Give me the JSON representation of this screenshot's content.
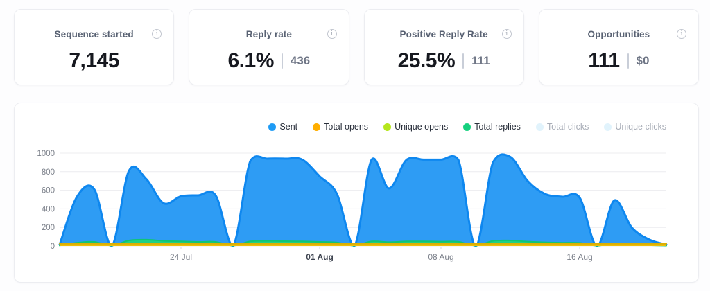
{
  "icons": {
    "info": "i"
  },
  "stats": [
    {
      "label": "Sequence started",
      "value": "7,145",
      "secondary": ""
    },
    {
      "label": "Reply rate",
      "value": "6.1%",
      "secondary": "436"
    },
    {
      "label": "Positive Reply Rate",
      "value": "25.5%",
      "secondary": "111"
    },
    {
      "label": "Opportunities",
      "value": "111",
      "secondary": "$0"
    }
  ],
  "legend": {
    "items": [
      {
        "label": "Sent",
        "color": "#1E9BF5",
        "enabled": true
      },
      {
        "label": "Total opens",
        "color": "#FFAE00",
        "enabled": true
      },
      {
        "label": "Unique opens",
        "color": "#B5E61D",
        "enabled": true
      },
      {
        "label": "Total replies",
        "color": "#15D07E",
        "enabled": true
      },
      {
        "label": "Total clicks",
        "color": "#E1F3FC",
        "enabled": false
      },
      {
        "label": "Unique clicks",
        "color": "#E1F3FC",
        "enabled": false
      }
    ]
  },
  "chart_data": {
    "type": "area",
    "x_unit": "day",
    "n_points": 36,
    "x_ticks": [
      {
        "label": "24 Jul",
        "index": 7,
        "bold": false
      },
      {
        "label": "01 Aug",
        "index": 15,
        "bold": true
      },
      {
        "label": "08 Aug",
        "index": 22,
        "bold": false
      },
      {
        "label": "16 Aug",
        "index": 30,
        "bold": false
      }
    ],
    "ylim": [
      0,
      1000
    ],
    "y_ticks": [
      0,
      200,
      400,
      600,
      800,
      1000
    ],
    "grid": "horizontal",
    "legend_position": "top-right",
    "series": [
      {
        "name": "Sent",
        "fill": "#2E9CF4",
        "stroke": "#0E87EF",
        "stroke_width": 3,
        "values": [
          15,
          530,
          610,
          0,
          810,
          720,
          460,
          535,
          545,
          545,
          0,
          915,
          940,
          940,
          930,
          750,
          560,
          0,
          930,
          620,
          925,
          930,
          930,
          930,
          0,
          900,
          960,
          700,
          560,
          530,
          520,
          0,
          490,
          200,
          70,
          15
        ]
      },
      {
        "name": "Total replies",
        "fill": "#1FD184",
        "stroke": "#0FC475",
        "stroke_width": 2,
        "values": [
          5,
          35,
          45,
          4,
          60,
          68,
          55,
          50,
          45,
          45,
          4,
          50,
          55,
          52,
          50,
          45,
          38,
          4,
          50,
          42,
          50,
          50,
          48,
          46,
          4,
          55,
          60,
          48,
          40,
          36,
          34,
          3,
          28,
          15,
          8,
          4
        ]
      },
      {
        "name": "Unique opens",
        "fill": "#BCE41A",
        "stroke": "#ADD60D",
        "stroke_width": 2,
        "values": [
          30,
          30,
          30,
          30,
          30,
          30,
          30,
          30,
          30,
          30,
          30,
          30,
          30,
          30,
          30,
          30,
          30,
          30,
          30,
          30,
          30,
          30,
          30,
          30,
          30,
          30,
          30,
          30,
          30,
          30,
          30,
          30,
          30,
          30,
          30,
          30
        ]
      },
      {
        "name": "Total opens",
        "fill": "#EFBE08",
        "stroke": "#D9AE04",
        "stroke_width": 2,
        "values": [
          24,
          24,
          24,
          24,
          24,
          24,
          24,
          24,
          24,
          24,
          24,
          24,
          24,
          24,
          24,
          24,
          24,
          24,
          24,
          24,
          24,
          24,
          24,
          24,
          24,
          24,
          24,
          24,
          24,
          24,
          24,
          24,
          24,
          24,
          24,
          24
        ]
      }
    ]
  }
}
